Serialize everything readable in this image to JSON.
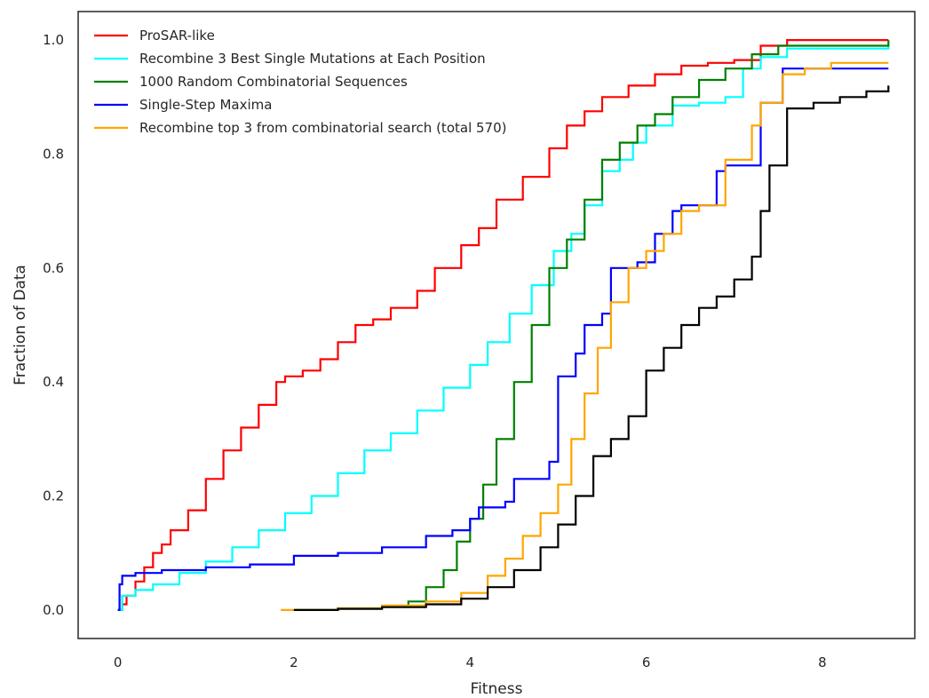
{
  "chart_data": {
    "type": "line",
    "xlabel": "Fitness",
    "ylabel": "Fraction of Data",
    "xlim": [
      -0.45,
      9.05
    ],
    "ylim": [
      -0.05,
      1.05
    ],
    "xticks": [
      0,
      2,
      4,
      6,
      8
    ],
    "yticks": [
      0.0,
      0.2,
      0.4,
      0.6,
      0.8,
      1.0
    ],
    "xtick_labels": [
      "0",
      "2",
      "4",
      "6",
      "8"
    ],
    "ytick_labels": [
      "0.0",
      "0.2",
      "0.4",
      "0.6",
      "0.8",
      "1.0"
    ],
    "grid": false,
    "legend_position": "upper-left",
    "series": [
      {
        "name": "ProSAR-like",
        "color": "#ff0000",
        "points": [
          [
            0,
            0
          ],
          [
            0.05,
            0.01
          ],
          [
            0.1,
            0.025
          ],
          [
            0.2,
            0.05
          ],
          [
            0.3,
            0.075
          ],
          [
            0.4,
            0.1
          ],
          [
            0.5,
            0.115
          ],
          [
            0.6,
            0.14
          ],
          [
            0.8,
            0.175
          ],
          [
            1.0,
            0.23
          ],
          [
            1.2,
            0.28
          ],
          [
            1.4,
            0.32
          ],
          [
            1.6,
            0.36
          ],
          [
            1.8,
            0.4
          ],
          [
            1.9,
            0.41
          ],
          [
            2.1,
            0.42
          ],
          [
            2.3,
            0.44
          ],
          [
            2.5,
            0.47
          ],
          [
            2.7,
            0.5
          ],
          [
            2.9,
            0.51
          ],
          [
            3.1,
            0.53
          ],
          [
            3.4,
            0.56
          ],
          [
            3.6,
            0.6
          ],
          [
            3.9,
            0.64
          ],
          [
            4.1,
            0.67
          ],
          [
            4.3,
            0.72
          ],
          [
            4.6,
            0.76
          ],
          [
            4.9,
            0.81
          ],
          [
            5.1,
            0.85
          ],
          [
            5.3,
            0.875
          ],
          [
            5.5,
            0.9
          ],
          [
            5.8,
            0.92
          ],
          [
            6.1,
            0.94
          ],
          [
            6.4,
            0.955
          ],
          [
            6.7,
            0.96
          ],
          [
            7.0,
            0.965
          ],
          [
            7.3,
            0.99
          ],
          [
            7.6,
            1.0
          ],
          [
            8.75,
            1.0
          ]
        ]
      },
      {
        "name": "Recombine 3 Best Single Mutations at Each Position",
        "color": "#00ffff",
        "points": [
          [
            0,
            0
          ],
          [
            0.05,
            0.025
          ],
          [
            0.2,
            0.035
          ],
          [
            0.4,
            0.045
          ],
          [
            0.7,
            0.065
          ],
          [
            1.0,
            0.085
          ],
          [
            1.3,
            0.11
          ],
          [
            1.6,
            0.14
          ],
          [
            1.9,
            0.17
          ],
          [
            2.2,
            0.2
          ],
          [
            2.5,
            0.24
          ],
          [
            2.8,
            0.28
          ],
          [
            3.1,
            0.31
          ],
          [
            3.4,
            0.35
          ],
          [
            3.7,
            0.39
          ],
          [
            4.0,
            0.43
          ],
          [
            4.2,
            0.47
          ],
          [
            4.45,
            0.52
          ],
          [
            4.7,
            0.57
          ],
          [
            4.95,
            0.63
          ],
          [
            5.15,
            0.66
          ],
          [
            5.3,
            0.71
          ],
          [
            5.5,
            0.77
          ],
          [
            5.7,
            0.79
          ],
          [
            5.85,
            0.82
          ],
          [
            6.0,
            0.85
          ],
          [
            6.3,
            0.885
          ],
          [
            6.6,
            0.89
          ],
          [
            6.9,
            0.9
          ],
          [
            7.1,
            0.95
          ],
          [
            7.3,
            0.97
          ],
          [
            7.6,
            0.985
          ],
          [
            8.75,
            0.99
          ]
        ]
      },
      {
        "name": "1000 Random Combinatorial Sequences",
        "color": "#008000",
        "points": [
          [
            2.0,
            0.0
          ],
          [
            2.5,
            0.003
          ],
          [
            3.0,
            0.006
          ],
          [
            3.3,
            0.015
          ],
          [
            3.5,
            0.04
          ],
          [
            3.7,
            0.07
          ],
          [
            3.85,
            0.12
          ],
          [
            4.0,
            0.16
          ],
          [
            4.15,
            0.22
          ],
          [
            4.3,
            0.3
          ],
          [
            4.5,
            0.4
          ],
          [
            4.7,
            0.5
          ],
          [
            4.9,
            0.6
          ],
          [
            5.1,
            0.65
          ],
          [
            5.3,
            0.72
          ],
          [
            5.5,
            0.79
          ],
          [
            5.7,
            0.82
          ],
          [
            5.9,
            0.85
          ],
          [
            6.1,
            0.87
          ],
          [
            6.3,
            0.9
          ],
          [
            6.6,
            0.93
          ],
          [
            6.9,
            0.95
          ],
          [
            7.2,
            0.975
          ],
          [
            7.5,
            0.99
          ],
          [
            8.75,
            1.0
          ]
        ]
      },
      {
        "name": "Single-Step Maxima",
        "color": "#0000ff",
        "points": [
          [
            0,
            0
          ],
          [
            0.02,
            0.045
          ],
          [
            0.05,
            0.06
          ],
          [
            0.2,
            0.065
          ],
          [
            0.5,
            0.07
          ],
          [
            1.0,
            0.075
          ],
          [
            1.5,
            0.08
          ],
          [
            2.0,
            0.095
          ],
          [
            2.5,
            0.1
          ],
          [
            3.0,
            0.11
          ],
          [
            3.5,
            0.13
          ],
          [
            3.8,
            0.14
          ],
          [
            4.0,
            0.16
          ],
          [
            4.1,
            0.18
          ],
          [
            4.4,
            0.19
          ],
          [
            4.5,
            0.23
          ],
          [
            4.9,
            0.26
          ],
          [
            5.0,
            0.41
          ],
          [
            5.2,
            0.45
          ],
          [
            5.3,
            0.5
          ],
          [
            5.5,
            0.52
          ],
          [
            5.6,
            0.6
          ],
          [
            5.9,
            0.61
          ],
          [
            6.1,
            0.66
          ],
          [
            6.3,
            0.7
          ],
          [
            6.4,
            0.71
          ],
          [
            6.8,
            0.77
          ],
          [
            6.9,
            0.78
          ],
          [
            7.3,
            0.89
          ],
          [
            7.55,
            0.95
          ],
          [
            8.75,
            0.95
          ]
        ]
      },
      {
        "name": "Recombine top 3 from combinatorial search (total 570)",
        "color": "#ffa500",
        "points": [
          [
            1.85,
            0.0
          ],
          [
            2.5,
            0.003
          ],
          [
            3.0,
            0.008
          ],
          [
            3.5,
            0.015
          ],
          [
            3.9,
            0.03
          ],
          [
            4.2,
            0.06
          ],
          [
            4.4,
            0.09
          ],
          [
            4.6,
            0.13
          ],
          [
            4.8,
            0.17
          ],
          [
            5.0,
            0.22
          ],
          [
            5.15,
            0.3
          ],
          [
            5.3,
            0.38
          ],
          [
            5.45,
            0.46
          ],
          [
            5.6,
            0.54
          ],
          [
            5.8,
            0.6
          ],
          [
            6.0,
            0.63
          ],
          [
            6.2,
            0.66
          ],
          [
            6.4,
            0.7
          ],
          [
            6.6,
            0.71
          ],
          [
            6.9,
            0.79
          ],
          [
            7.2,
            0.85
          ],
          [
            7.3,
            0.89
          ],
          [
            7.55,
            0.94
          ],
          [
            7.8,
            0.95
          ],
          [
            8.1,
            0.96
          ],
          [
            8.75,
            0.96
          ]
        ]
      },
      {
        "name": "",
        "color": "#000000",
        "points": [
          [
            2.0,
            0.0
          ],
          [
            2.5,
            0.002
          ],
          [
            3.0,
            0.005
          ],
          [
            3.5,
            0.01
          ],
          [
            3.9,
            0.02
          ],
          [
            4.2,
            0.04
          ],
          [
            4.5,
            0.07
          ],
          [
            4.8,
            0.11
          ],
          [
            5.0,
            0.15
          ],
          [
            5.2,
            0.2
          ],
          [
            5.4,
            0.27
          ],
          [
            5.6,
            0.3
          ],
          [
            5.8,
            0.34
          ],
          [
            6.0,
            0.42
          ],
          [
            6.2,
            0.46
          ],
          [
            6.4,
            0.5
          ],
          [
            6.6,
            0.53
          ],
          [
            6.8,
            0.55
          ],
          [
            7.0,
            0.58
          ],
          [
            7.2,
            0.62
          ],
          [
            7.3,
            0.7
          ],
          [
            7.4,
            0.78
          ],
          [
            7.6,
            0.88
          ],
          [
            7.9,
            0.89
          ],
          [
            8.2,
            0.9
          ],
          [
            8.5,
            0.91
          ],
          [
            8.75,
            0.92
          ]
        ]
      }
    ]
  }
}
